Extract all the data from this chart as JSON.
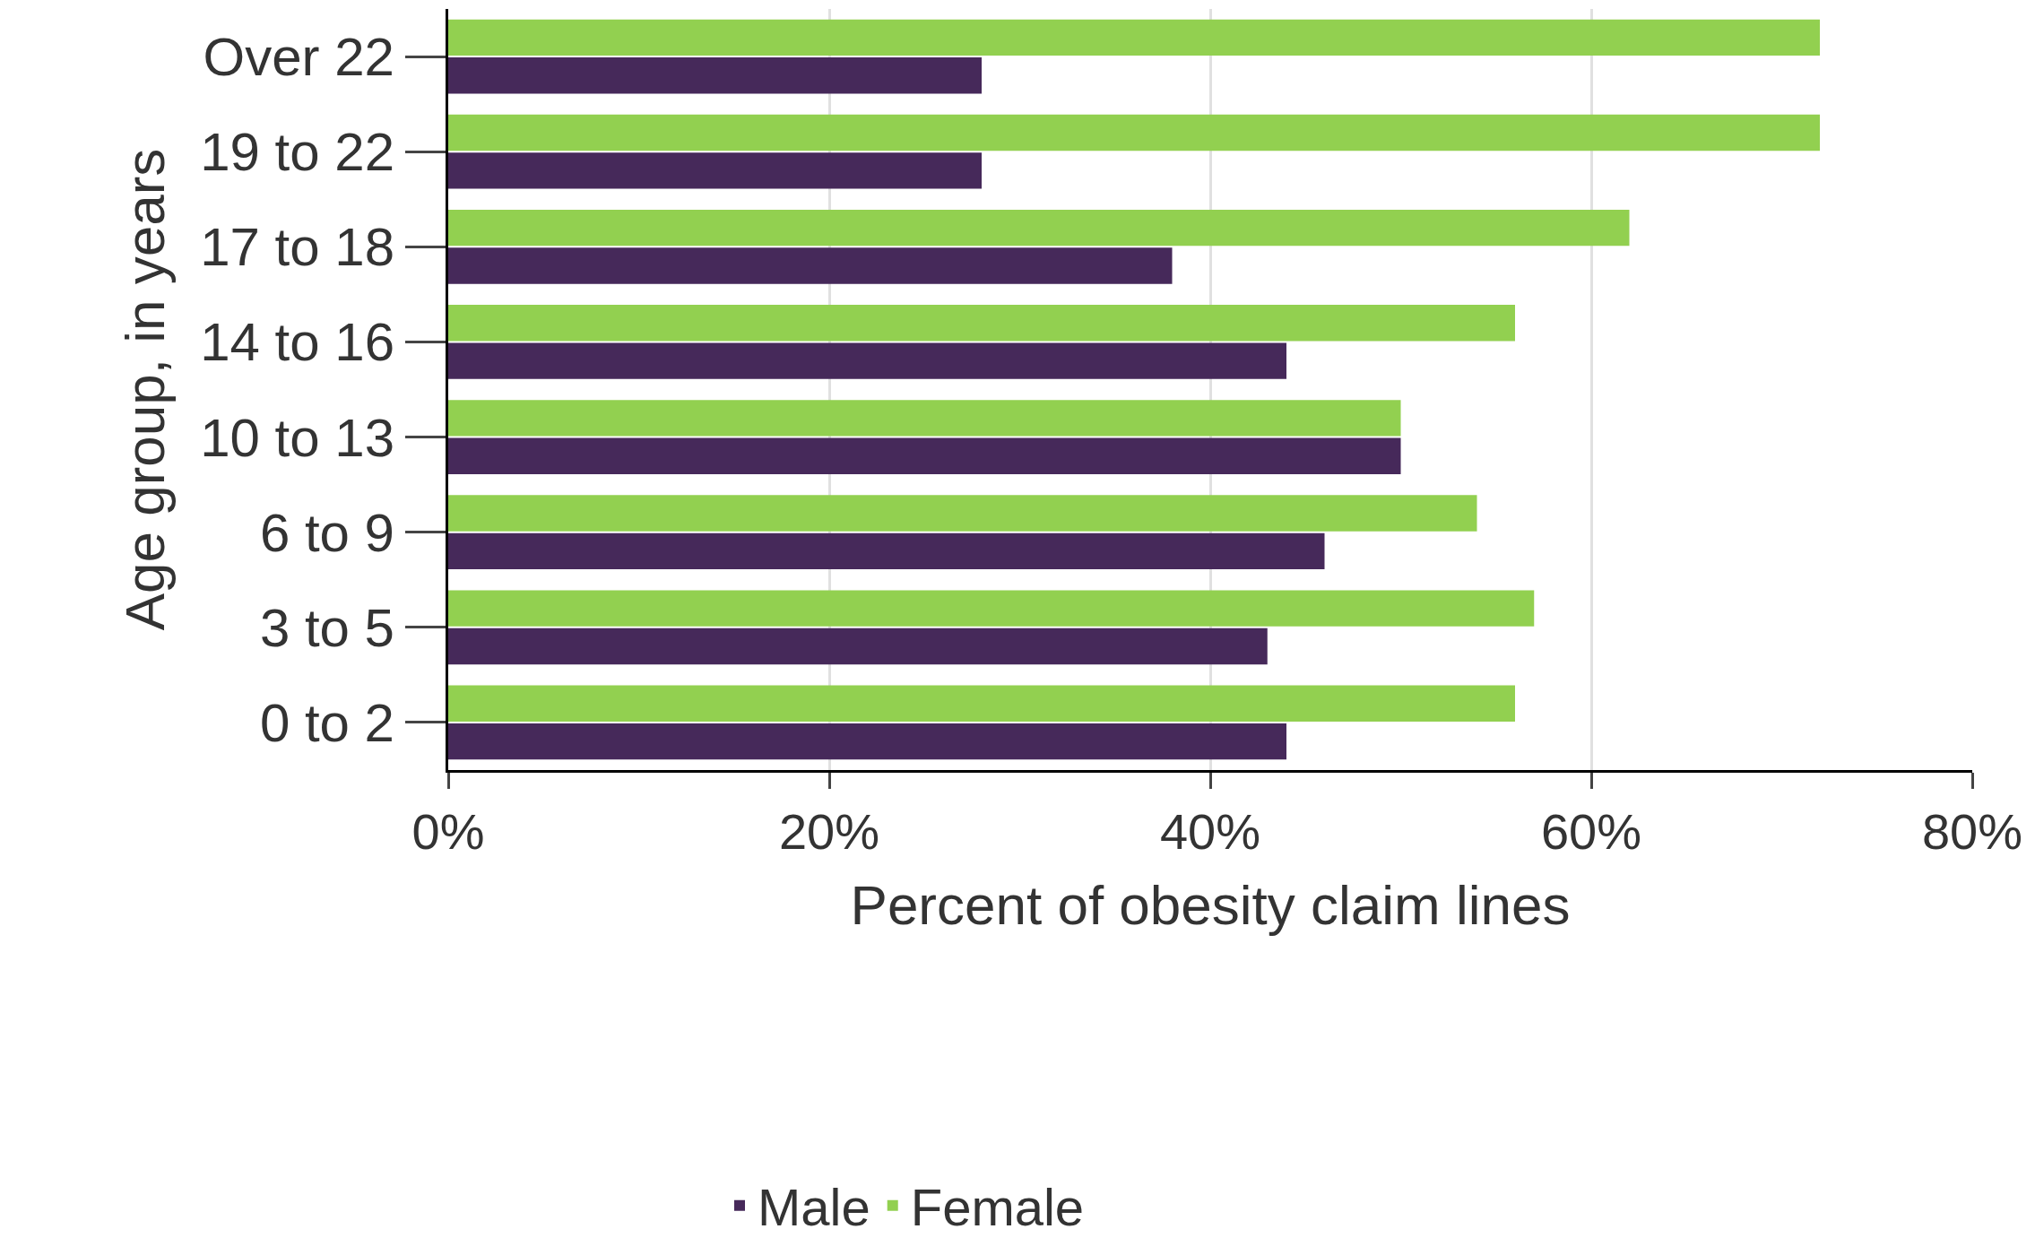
{
  "chart_data": {
    "type": "bar",
    "orientation": "horizontal",
    "xlabel": "Percent of obesity claim lines",
    "ylabel": "Age group, in years",
    "categories": [
      "Over 22",
      "19 to 22",
      "17 to 18",
      "14 to 16",
      "10 to 13",
      "6 to 9",
      "3 to 5",
      "0 to 2"
    ],
    "series": [
      {
        "name": "Male",
        "color": "#46295a",
        "values": [
          28,
          28,
          38,
          44,
          50,
          46,
          43,
          44
        ]
      },
      {
        "name": "Female",
        "color": "#92d050",
        "values": [
          72,
          72,
          62,
          56,
          50,
          54,
          57,
          56
        ]
      }
    ],
    "xlim": [
      0,
      80
    ],
    "xticks": [
      {
        "value": 0,
        "label": "0%"
      },
      {
        "value": 20,
        "label": "20%"
      },
      {
        "value": 40,
        "label": "40%"
      },
      {
        "value": 60,
        "label": "60%"
      },
      {
        "value": 80,
        "label": "80%"
      }
    ],
    "grid": "x",
    "legend": "bottom"
  }
}
